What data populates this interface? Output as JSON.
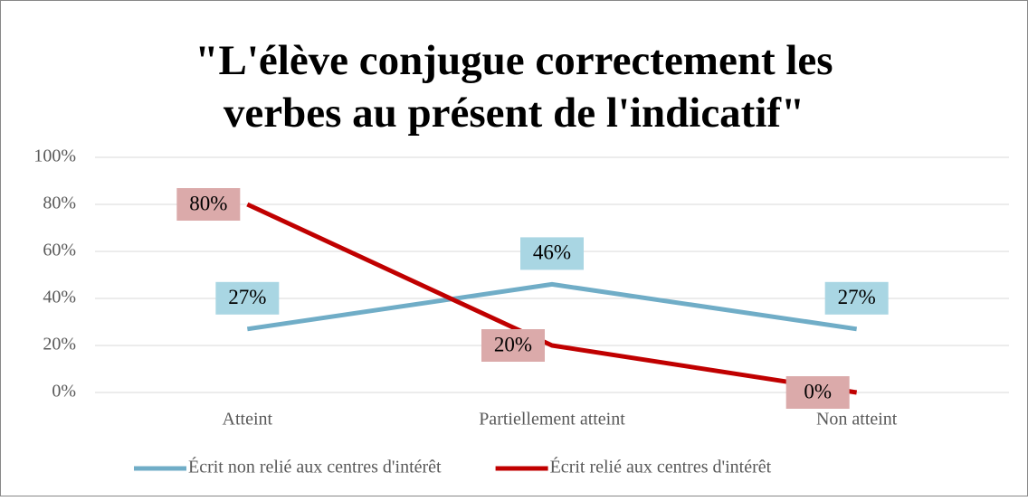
{
  "chart_data": {
    "type": "line",
    "title": "\"L'élève conjugue correctement les verbes au présent de l'indicatif\"",
    "categories": [
      "Atteint",
      "Partiellement atteint",
      "Non atteint"
    ],
    "series": [
      {
        "name": "Écrit non relié aux centres d'intérêt",
        "color": "#70adc7",
        "label_color": "#a9d6e3",
        "values": [
          27,
          46,
          27
        ],
        "value_labels": [
          "27%",
          "46%",
          "27%"
        ]
      },
      {
        "name": "Écrit relié aux centres d'intérêt",
        "color": "#c00000",
        "label_color": "#dbaaaa",
        "values": [
          80,
          20,
          0
        ],
        "value_labels": [
          "80%",
          "20%",
          "0%"
        ]
      }
    ],
    "ylim": [
      0,
      100
    ],
    "yticks": [
      {
        "value": 0,
        "label": "0%"
      },
      {
        "value": 20,
        "label": "20%"
      },
      {
        "value": 40,
        "label": "40%"
      },
      {
        "value": 60,
        "label": "60%"
      },
      {
        "value": 80,
        "label": "80%"
      },
      {
        "value": 100,
        "label": "100%"
      }
    ],
    "grid": true,
    "legend": "bottom"
  }
}
